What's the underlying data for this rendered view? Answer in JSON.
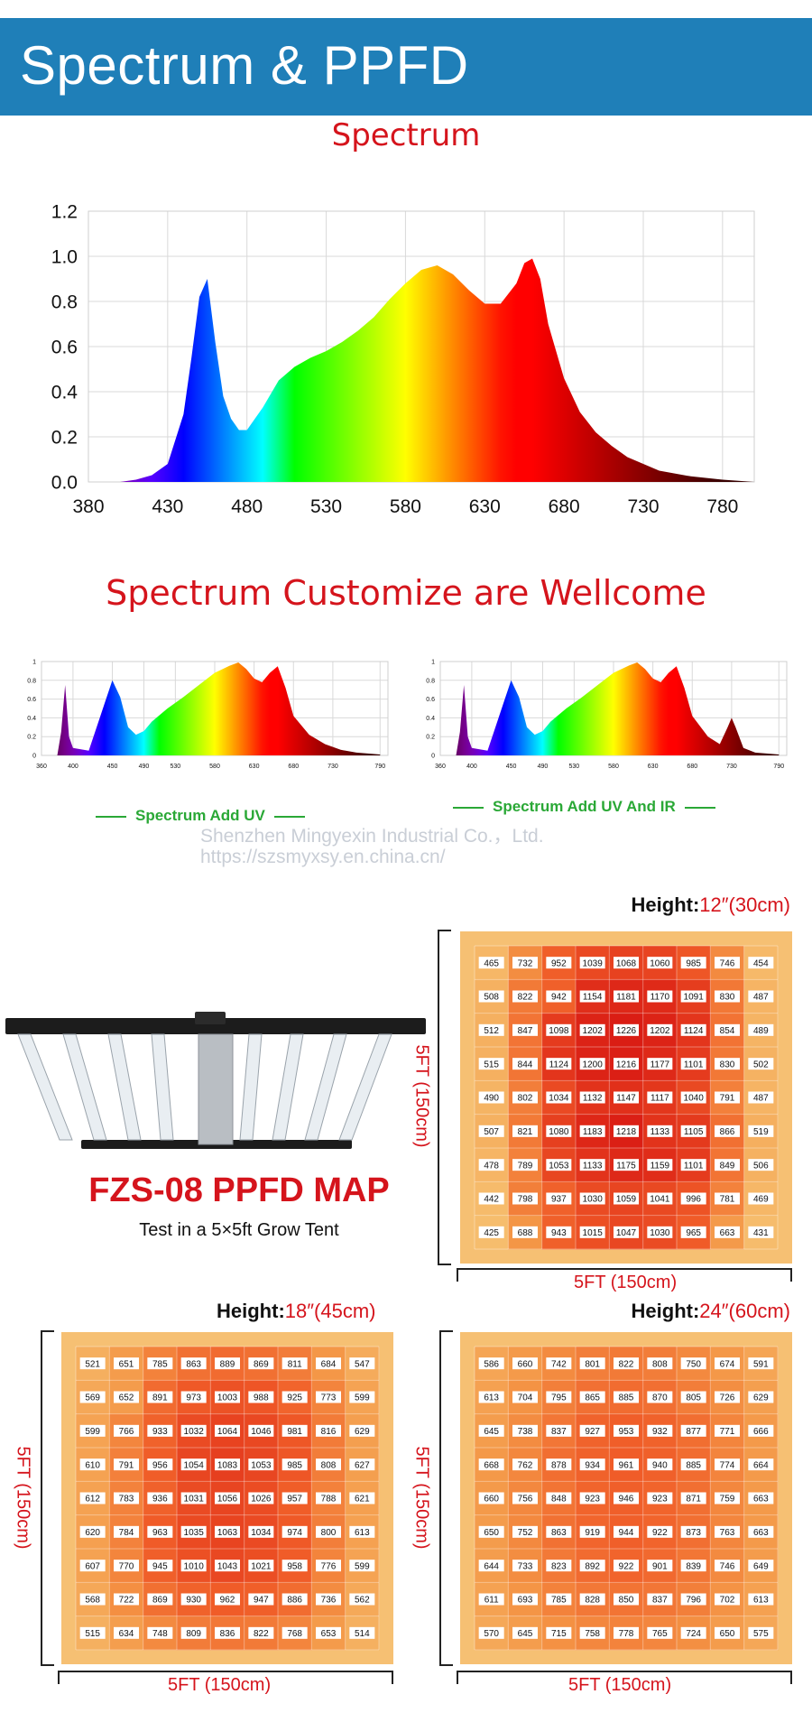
{
  "header": {
    "title": "Spectrum & PPFD"
  },
  "spectrum_section": {
    "title": "Spectrum"
  },
  "customize_section": {
    "title": "Spectrum Customize are Wellcome",
    "left_caption": "Spectrum Add UV",
    "right_caption": "Spectrum Add UV And IR"
  },
  "watermark": {
    "company": "Shenzhen Mingyexin Industrial Co.，Ltd.",
    "url": "https://szsmyxsy.en.china.cn/"
  },
  "ppfd_section": {
    "title": "FZS-08 PPFD MAP",
    "subtitle": "Test in a 5×5ft Grow Tent",
    "height_label": "Height:",
    "dimension_label": "5FT (150cm)"
  },
  "colors": {
    "banner": "#1f7fb8",
    "accent_red": "#d5141c",
    "caption_green": "#2aa836"
  },
  "chart_data": [
    {
      "type": "area",
      "title": "Spectrum",
      "xlabel": "",
      "ylabel": "",
      "xlim": [
        380,
        800
      ],
      "ylim": [
        0,
        1.2
      ],
      "x_ticks": [
        380,
        430,
        480,
        530,
        580,
        630,
        680,
        730,
        780
      ],
      "y_ticks": [
        0.0,
        0.2,
        0.4,
        0.6,
        0.8,
        1.0,
        1.2
      ],
      "grid": true,
      "x": [
        380,
        400,
        410,
        420,
        430,
        440,
        445,
        450,
        455,
        460,
        465,
        470,
        475,
        480,
        490,
        500,
        510,
        520,
        530,
        540,
        550,
        560,
        570,
        580,
        590,
        600,
        610,
        620,
        630,
        640,
        650,
        655,
        660,
        665,
        670,
        680,
        690,
        700,
        710,
        720,
        730,
        740,
        760,
        780,
        800
      ],
      "y": [
        0,
        0,
        0.01,
        0.03,
        0.08,
        0.3,
        0.55,
        0.82,
        0.9,
        0.62,
        0.38,
        0.28,
        0.23,
        0.23,
        0.33,
        0.45,
        0.51,
        0.55,
        0.58,
        0.62,
        0.67,
        0.73,
        0.81,
        0.88,
        0.94,
        0.96,
        0.92,
        0.85,
        0.79,
        0.79,
        0.88,
        0.97,
        0.99,
        0.9,
        0.7,
        0.46,
        0.31,
        0.22,
        0.16,
        0.11,
        0.08,
        0.05,
        0.025,
        0.01,
        0.0
      ]
    },
    {
      "type": "area",
      "title": "Spectrum Add UV",
      "xlim": [
        360,
        800
      ],
      "ylim": [
        0,
        1.0
      ],
      "x_ticks": [
        360,
        400,
        450,
        490,
        530,
        580,
        630,
        680,
        730,
        790
      ],
      "y_ticks": [
        0,
        0.2,
        0.4,
        0.6,
        0.8,
        1.0
      ],
      "x": [
        360,
        380,
        385,
        390,
        395,
        400,
        420,
        440,
        450,
        460,
        470,
        480,
        490,
        500,
        520,
        540,
        560,
        580,
        600,
        610,
        620,
        630,
        640,
        650,
        660,
        670,
        680,
        700,
        720,
        740,
        760,
        790
      ],
      "y": [
        0,
        0,
        0.25,
        0.75,
        0.2,
        0.08,
        0.05,
        0.55,
        0.8,
        0.62,
        0.3,
        0.22,
        0.26,
        0.36,
        0.5,
        0.62,
        0.75,
        0.88,
        0.96,
        0.99,
        0.92,
        0.82,
        0.78,
        0.88,
        0.95,
        0.72,
        0.42,
        0.22,
        0.12,
        0.06,
        0.03,
        0.01
      ]
    },
    {
      "type": "area",
      "title": "Spectrum Add UV And IR",
      "xlim": [
        360,
        800
      ],
      "ylim": [
        0,
        1.0
      ],
      "x_ticks": [
        360,
        400,
        450,
        490,
        530,
        580,
        630,
        680,
        730,
        790
      ],
      "y_ticks": [
        0,
        0.2,
        0.4,
        0.6,
        0.8,
        1.0
      ],
      "x": [
        360,
        380,
        385,
        390,
        395,
        400,
        420,
        440,
        450,
        460,
        470,
        480,
        490,
        500,
        520,
        540,
        560,
        580,
        600,
        610,
        620,
        630,
        640,
        650,
        660,
        670,
        680,
        700,
        715,
        725,
        730,
        735,
        745,
        760,
        790
      ],
      "y": [
        0,
        0,
        0.25,
        0.75,
        0.2,
        0.08,
        0.05,
        0.55,
        0.8,
        0.62,
        0.3,
        0.22,
        0.26,
        0.36,
        0.5,
        0.62,
        0.75,
        0.88,
        0.96,
        0.99,
        0.92,
        0.82,
        0.78,
        0.88,
        0.95,
        0.72,
        0.42,
        0.2,
        0.12,
        0.3,
        0.4,
        0.3,
        0.08,
        0.03,
        0.01
      ]
    },
    {
      "type": "heatmap",
      "title": "PPFD map",
      "height": "12″(30cm)",
      "values": [
        [
          465,
          732,
          952,
          1039,
          1068,
          1060,
          985,
          746,
          454
        ],
        [
          508,
          822,
          942,
          1154,
          1181,
          1170,
          1091,
          830,
          487
        ],
        [
          512,
          847,
          1098,
          1202,
          1226,
          1202,
          1124,
          854,
          489
        ],
        [
          515,
          844,
          1124,
          1200,
          1216,
          1177,
          1101,
          830,
          502
        ],
        [
          490,
          802,
          1034,
          1132,
          1147,
          1117,
          1040,
          791,
          487
        ],
        [
          507,
          821,
          1080,
          1183,
          1218,
          1133,
          1105,
          866,
          519
        ],
        [
          478,
          789,
          1053,
          1133,
          1175,
          1159,
          1101,
          849,
          506
        ],
        [
          442,
          798,
          937,
          1030,
          1059,
          1041,
          996,
          781,
          469
        ],
        [
          425,
          688,
          943,
          1015,
          1047,
          1030,
          965,
          663,
          431
        ]
      ]
    },
    {
      "type": "heatmap",
      "title": "PPFD map",
      "height": "18″(45cm)",
      "values": [
        [
          521,
          651,
          785,
          863,
          889,
          869,
          811,
          684,
          547
        ],
        [
          569,
          652,
          891,
          973,
          1003,
          988,
          925,
          773,
          599
        ],
        [
          599,
          766,
          933,
          1032,
          1064,
          1046,
          981,
          816,
          629
        ],
        [
          610,
          791,
          956,
          1054,
          1083,
          1053,
          985,
          808,
          627
        ],
        [
          612,
          783,
          936,
          1031,
          1056,
          1026,
          957,
          788,
          621
        ],
        [
          620,
          784,
          963,
          1035,
          1063,
          1034,
          974,
          800,
          613
        ],
        [
          607,
          770,
          945,
          1010,
          1043,
          1021,
          958,
          776,
          599
        ],
        [
          568,
          722,
          869,
          930,
          962,
          947,
          886,
          736,
          562
        ],
        [
          515,
          634,
          748,
          809,
          836,
          822,
          768,
          653,
          514
        ]
      ]
    },
    {
      "type": "heatmap",
      "title": "PPFD map",
      "height": "24″(60cm)",
      "values": [
        [
          586,
          660,
          742,
          801,
          822,
          808,
          750,
          674,
          591
        ],
        [
          613,
          704,
          795,
          865,
          885,
          870,
          805,
          726,
          629
        ],
        [
          645,
          738,
          837,
          927,
          953,
          932,
          877,
          771,
          666
        ],
        [
          668,
          762,
          878,
          934,
          961,
          940,
          885,
          774,
          664
        ],
        [
          660,
          756,
          848,
          923,
          946,
          923,
          871,
          759,
          663
        ],
        [
          650,
          752,
          863,
          919,
          944,
          922,
          873,
          763,
          663
        ],
        [
          644,
          733,
          823,
          892,
          922,
          901,
          839,
          746,
          649
        ],
        [
          611,
          693,
          785,
          828,
          850,
          837,
          796,
          702,
          613
        ],
        [
          570,
          645,
          715,
          758,
          778,
          765,
          724,
          650,
          575
        ]
      ]
    }
  ]
}
